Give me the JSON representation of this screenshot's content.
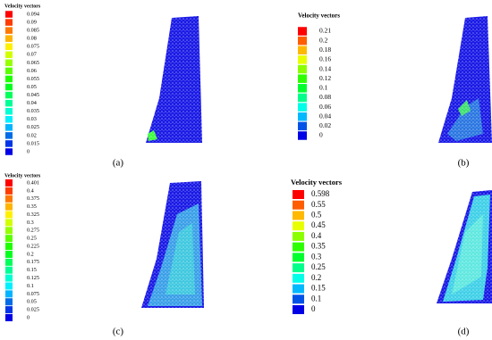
{
  "panels": [
    {
      "legend": {
        "title": "Velocity vectors",
        "labels": [
          "0.094",
          "0.09",
          "0.085",
          "0.08",
          "0.075",
          "0.07",
          "0.065",
          "0.06",
          "0.055",
          "0.05",
          "0.045",
          "0.04",
          "0.035",
          "0.03",
          "0.025",
          "0.02",
          "0.015",
          "0"
        ]
      },
      "caption": "(a)"
    },
    {
      "legend": {
        "title": "Velocity vectors",
        "labels": [
          "0.21",
          "0.2",
          "0.18",
          "0.16",
          "0.14",
          "0.12",
          "0.1",
          "0.08",
          "0.06",
          "0.04",
          "0.02",
          "0"
        ]
      },
      "caption": "(b)"
    },
    {
      "legend": {
        "title": "Velocity vectors",
        "labels": [
          "0.401",
          "0.4",
          "0.375",
          "0.35",
          "0.325",
          "0.3",
          "0.275",
          "0.25",
          "0.225",
          "0.2",
          "0.175",
          "0.15",
          "0.125",
          "0.1",
          "0.075",
          "0.05",
          "0.025",
          "0"
        ]
      },
      "caption": "(c)"
    },
    {
      "legend": {
        "title": "Velocity vectors",
        "labels": [
          "0.598",
          "0.55",
          "0.5",
          "0.45",
          "0.4",
          "0.35",
          "0.3",
          "0.25",
          "0.2",
          "0.15",
          "0.1",
          "0"
        ]
      },
      "caption": "(d)"
    }
  ]
}
